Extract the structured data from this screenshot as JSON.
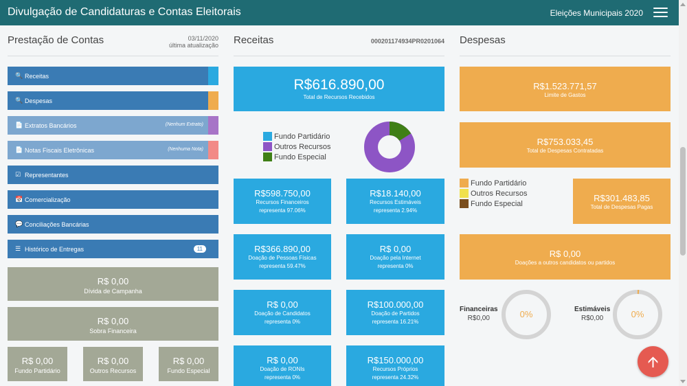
{
  "header": {
    "title": "Divulgação de Candidaturas e Contas Eleitorais",
    "election": "Eleições Municipais 2020"
  },
  "prestacao": {
    "title": "Prestação de Contas",
    "date": "03/11/2020",
    "date_label": "última atualização",
    "menu": [
      {
        "label": "Receitas",
        "icon": "search-icon",
        "note": ""
      },
      {
        "label": "Despesas",
        "icon": "search-icon",
        "note": ""
      },
      {
        "label": "Extratos Bancários",
        "icon": "document-icon",
        "note": "(Nenhum Extrato)"
      },
      {
        "label": "Notas Fiscais Eletrônicas",
        "icon": "document-icon",
        "note": "(Nenhuma Nota)"
      },
      {
        "label": "Representantes",
        "icon": "checkbox-icon",
        "note": ""
      },
      {
        "label": "Comercialização",
        "icon": "calendar-icon",
        "note": ""
      },
      {
        "label": "Conciliações Bancárias",
        "icon": "comment-icon",
        "note": ""
      },
      {
        "label": "Histórico de Entregas",
        "icon": "list-icon",
        "note": "",
        "badge": "11"
      }
    ],
    "indicator_colors": [
      "#2aa9e0",
      "#efac4e",
      "#a774c7",
      "#f28a87"
    ],
    "divida": {
      "value": "R$ 0,00",
      "label": "Dívida de Campanha"
    },
    "sobra": {
      "value": "R$ 0,00",
      "label": "Sobra Financeira"
    },
    "fundos": [
      {
        "value": "R$ 0,00",
        "label": "Fundo Partidário"
      },
      {
        "value": "R$ 0,00",
        "label": "Outros Recursos"
      },
      {
        "value": "R$ 0,00",
        "label": "Fundo Especial"
      }
    ]
  },
  "receitas": {
    "title": "Receitas",
    "code": "000201174934PR0201064",
    "total_value": "R$616.890,00",
    "total_label": "Total de Recursos Recebidos",
    "legend": [
      {
        "label": "Fundo Partidário",
        "color": "#2aa9e0"
      },
      {
        "label": "Outros Recursos",
        "color": "#8d55c5"
      },
      {
        "label": "Fundo Especial",
        "color": "#3f7f16"
      }
    ],
    "donut": {
      "outros": 84,
      "especial": 16
    },
    "cards": [
      {
        "value": "R$598.750,00",
        "label": "Recursos Financeiros",
        "pct": "representa 97.06%"
      },
      {
        "value": "R$18.140,00",
        "label": "Recursos Estimáveis",
        "pct": "representa 2.94%"
      },
      {
        "value": "R$366.890,00",
        "label": "Doação de Pessoas Físicas",
        "pct": "representa 59.47%"
      },
      {
        "value": "R$ 0,00",
        "label": "Doação pela Internet",
        "pct": "representa 0%"
      },
      {
        "value": "R$ 0,00",
        "label": "Doação de Candidatos",
        "pct": "representa 0%"
      },
      {
        "value": "R$100.000,00",
        "label": "Doação de Partidos",
        "pct": "representa 16.21%"
      },
      {
        "value": "R$ 0,00",
        "label": "Doação de RONIs",
        "pct": "representa 0%"
      },
      {
        "value": "R$150.000,00",
        "label": "Recursos Próprios",
        "pct": "representa 24.32%"
      }
    ]
  },
  "despesas": {
    "title": "Despesas",
    "limite": {
      "value": "R$1.523.771,57",
      "label": "Limite de Gastos"
    },
    "contratadas": {
      "value": "R$753.033,45",
      "label": "Total de Despesas Contratadas"
    },
    "legend": [
      {
        "label": "Fundo Partidário",
        "color": "#efac4e"
      },
      {
        "label": "Outros Recursos",
        "color": "#f0e14e"
      },
      {
        "label": "Fundo Especial",
        "color": "#7a4e1d"
      }
    ],
    "pagas": {
      "value": "R$301.483,85",
      "label": "Total de Despesas Pagas"
    },
    "doacoes": {
      "value": "R$ 0,00",
      "label": "Doações a outros candidatos ou partidos"
    },
    "financeiras": {
      "label": "Financeiras",
      "value": "R$0,00",
      "pct": "0%"
    },
    "estimaveis": {
      "label": "Estimáveis",
      "value": "R$0,00",
      "pct": "0%"
    }
  }
}
